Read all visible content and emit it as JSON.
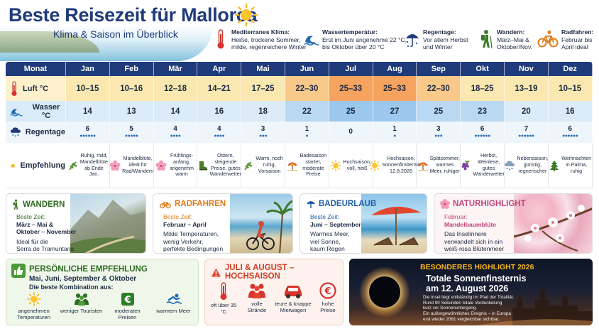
{
  "header": {
    "title": "Beste Reisezeit für Mallorca",
    "subtitle": "Klima & Saison im Überblick"
  },
  "info": [
    {
      "icon": "thermometer-icon",
      "title": "Mediterranes Klima:",
      "lines": [
        "Heiße, trockene Sommer,",
        "milde, regenreichere Winter"
      ]
    },
    {
      "icon": "wave-icon",
      "title": "Wassertemperatur:",
      "lines": [
        "Erst im Juni angenehme 22 °C,",
        "bis Oktober über 20 °C"
      ]
    },
    {
      "icon": "umbrella-rain-icon",
      "title": "Regentage:",
      "lines": [
        "Vor allem Herbst",
        "und Winter"
      ]
    },
    {
      "icon": "hiker-icon",
      "title": "Wandern:",
      "lines": [
        "März–Mai &",
        "Oktober/Nov."
      ]
    },
    {
      "icon": "bicycle-icon",
      "title": "Radfahren:",
      "lines": [
        "Februar bis",
        "April ideal"
      ]
    }
  ],
  "table": {
    "header_label": "Monat",
    "months": [
      "Jan",
      "Feb",
      "Mär",
      "Apr",
      "Mai",
      "Jun",
      "Jul",
      "Aug",
      "Sep",
      "Okt",
      "Nov",
      "Dez"
    ],
    "rows": {
      "luft": {
        "label": "Luft °C",
        "values": [
          "10–15",
          "10–16",
          "12–18",
          "14–21",
          "17–25",
          "22–30",
          "25–33",
          "25–33",
          "22–30",
          "18–25",
          "13–19",
          "10–15"
        ]
      },
      "wasser": {
        "label": "Wasser °C",
        "values": [
          "14",
          "13",
          "14",
          "16",
          "18",
          "22",
          "25",
          "27",
          "25",
          "23",
          "20",
          "16"
        ]
      },
      "regen": {
        "label": "Regentage",
        "values": [
          "6",
          "5",
          "4",
          "4",
          "3",
          "1",
          "0",
          "1",
          "3",
          "6",
          "7",
          "6"
        ]
      },
      "empfehlung": {
        "label": "Empfehlung",
        "values": [
          "Ruhig, mild, Mandelblüte ab Ende Jan.",
          "Mandelblüte, ideal für Rad/Wandern",
          "Frühlings-anfang, angenehm warm",
          "Ostern, steigende Preise, gutes Wanderwetter",
          "Warm, noch ruhig, Vorsaison",
          "Badesaison startet, moderate Preise",
          "Hochsaison, voll, heiß",
          "Hochsaison, Sonnenfinsternis 12.8.2026",
          "Spätsommer, warmes Meer, ruhiger",
          "Herbst, Weinlese, gutes Wanderwetter",
          "Nebensaison, günstig, regnerischer",
          "Weihnachten in Palma, ruhig"
        ]
      }
    },
    "colors": {
      "luft": [
        "#fbe8b0",
        "#fbe8b0",
        "#fbe8b0",
        "#fbe8b0",
        "#fbe8b0",
        "#f9c98a",
        "#f5a35e",
        "#f5a35e",
        "#f9c98a",
        "#fbe8b0",
        "#fbe8b0",
        "#fbe8b0"
      ],
      "wasser": [
        "#dcebf8",
        "#dcebf8",
        "#dcebf8",
        "#dcebf8",
        "#dcebf8",
        "#b9d8f1",
        "#9bc8ec",
        "#9bc8ec",
        "#b9d8f1",
        "#b9d8f1",
        "#dcebf8",
        "#dcebf8"
      ]
    }
  },
  "cards": {
    "wandern": {
      "title": "WANDERN",
      "subtitle": "Beste Zeit:",
      "highlight": [
        "März – Mai &",
        "Oktober – November"
      ],
      "text": [
        "Ideal für die",
        "Serra de Tramuntana"
      ]
    },
    "radfahren": {
      "title": "RADFAHREN",
      "subtitle": "Beste Zeit:",
      "highlight": [
        "Februar – April"
      ],
      "text": [
        "Milde Temperaturen,",
        "wenig Verkehr,",
        "perfekte Bedingungen"
      ]
    },
    "badeurlaub": {
      "title": "BADEURLAUB",
      "subtitle": "Beste Zeit:",
      "highlight": [
        "Juni – September"
      ],
      "text": [
        "Warmes Meer,",
        "viel Sonne,",
        "kaum Regen"
      ]
    },
    "natur": {
      "title": "NATURHIGHLIGHT",
      "subtitle": "Februar:",
      "highlight": [
        "Mandelbaumblüte"
      ],
      "text": [
        "Das Inselinnere",
        "verwandelt sich in ein",
        "weiß-rosa Blütenmeer"
      ]
    }
  },
  "empfehlung_box": {
    "title": "PERSÖNLICHE EMPFEHLUNG",
    "months": "Mai, Juni, September & Oktober",
    "intro": "Die beste Kombination aus:",
    "items": [
      "angenehmen Temperaturen",
      "weniger Touristen",
      "moderaten Preisen",
      "warmem Meer"
    ]
  },
  "hochsaison_box": {
    "title": "JULI & AUGUST – HOCHSAISON",
    "items": [
      "oft über 35 °C",
      "volle Strände",
      "teure & knappe Mietwagen",
      "hohe Preise"
    ]
  },
  "highlight_box": {
    "title": "BESONDERES HIGHLIGHT 2026",
    "headline": [
      "Totale Sonnenfinsternis",
      "am 12. August 2026"
    ],
    "text": [
      "Die Insel liegt vollständig im Pfad der Totalität.",
      "Rund 90 Sekunden totale Verdunkelung",
      "kurz vor Sonnenuntergang.",
      "Ein außergewöhnliches Ereignis – in Europa",
      "erst wieder 2081 vergleichbar sichtbar."
    ]
  }
}
